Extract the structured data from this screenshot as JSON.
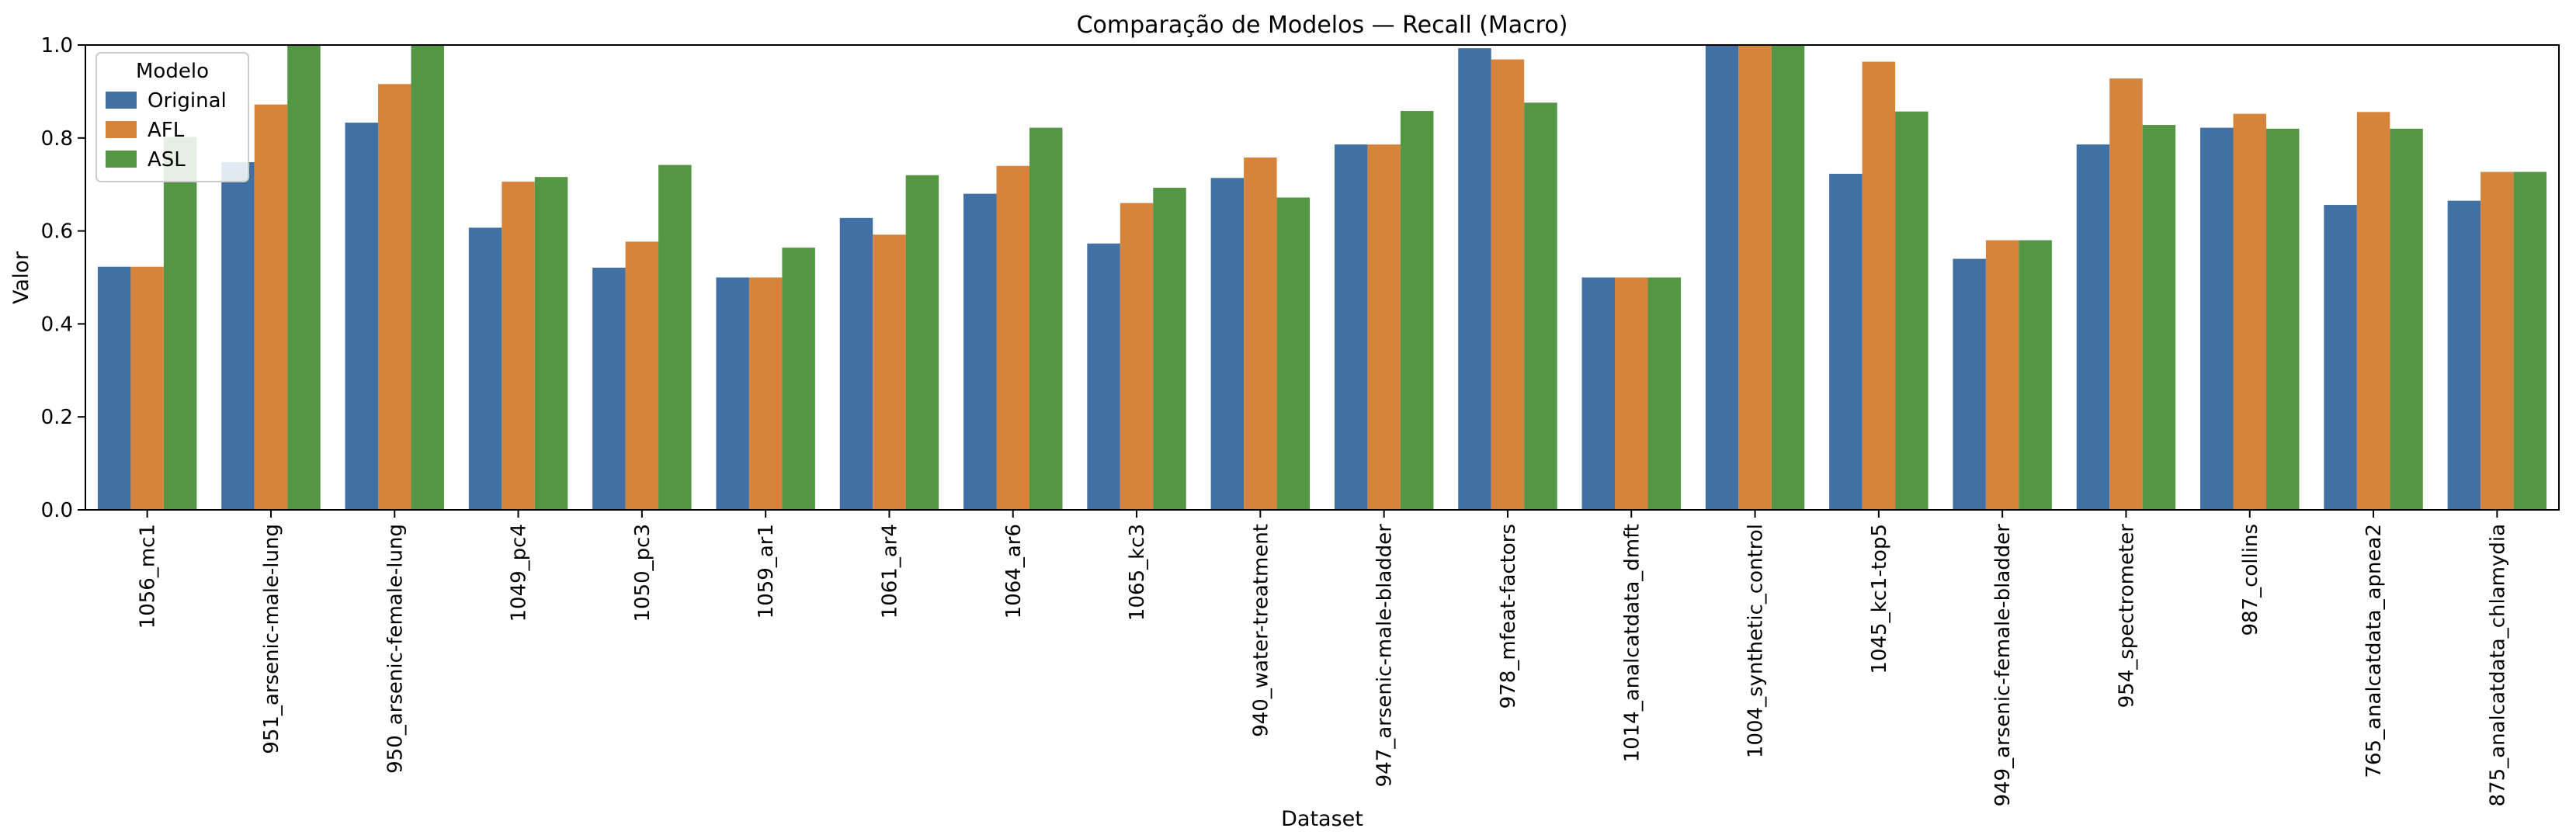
{
  "chart_data": {
    "type": "bar",
    "title": "Comparação de Modelos — Recall (Macro)",
    "xlabel": "Dataset",
    "ylabel": "Valor",
    "ylim": [
      0,
      1.0
    ],
    "yticks": [
      "0.0",
      "0.2",
      "0.4",
      "0.6",
      "0.8",
      "1.0"
    ],
    "grid": false,
    "legend": {
      "title": "Modelo",
      "placement": "top-left"
    },
    "categories": [
      "1056_mc1",
      "951_arsenic-male-lung",
      "950_arsenic-female-lung",
      "1049_pc4",
      "1050_pc3",
      "1059_ar1",
      "1061_ar4",
      "1064_ar6",
      "1065_kc3",
      "940_water-treatment",
      "947_arsenic-male-bladder",
      "978_mfeat-factors",
      "1014_analcatdata_dmft",
      "1004_synthetic_control",
      "1045_kc1-top5",
      "949_arsenic-female-bladder",
      "954_spectrometer",
      "987_collins",
      "765_analcatdata_apnea2",
      "875_analcatdata_chlamydia"
    ],
    "series": [
      {
        "name": "Original",
        "color": "#4170a4",
        "values": [
          0.523,
          0.748,
          0.833,
          0.607,
          0.521,
          0.5,
          0.628,
          0.68,
          0.573,
          0.714,
          0.786,
          0.993,
          0.5,
          1.0,
          0.723,
          0.54,
          0.786,
          0.822,
          0.656,
          0.665
        ]
      },
      {
        "name": "AFL",
        "color": "#d6843b",
        "values": [
          0.523,
          0.872,
          0.916,
          0.706,
          0.577,
          0.5,
          0.592,
          0.74,
          0.66,
          0.758,
          0.786,
          0.969,
          0.5,
          1.0,
          0.964,
          0.58,
          0.928,
          0.852,
          0.856,
          0.727
        ]
      },
      {
        "name": "ASL",
        "color": "#559645",
        "values": [
          0.802,
          1.0,
          1.0,
          0.716,
          0.742,
          0.564,
          0.72,
          0.822,
          0.693,
          0.672,
          0.858,
          0.876,
          0.5,
          1.0,
          0.857,
          0.58,
          0.828,
          0.82,
          0.82,
          0.727
        ]
      }
    ]
  }
}
